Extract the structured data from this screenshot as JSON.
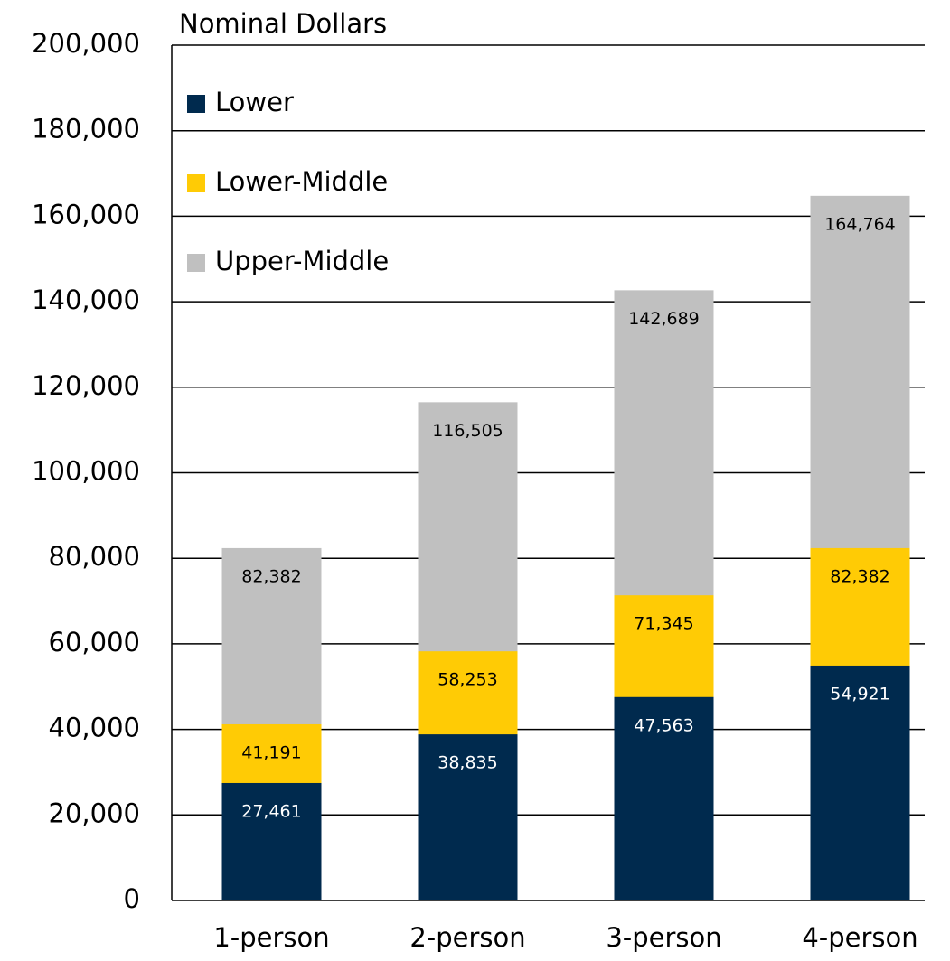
{
  "chart_data": {
    "type": "bar",
    "mode": "overlap",
    "title": "Nominal Dollars",
    "categories": [
      "1-person",
      "2-person",
      "3-person",
      "4-person"
    ],
    "series": [
      {
        "name": "Lower",
        "color": "#002a4e",
        "values": [
          27461,
          38835,
          47563,
          54921
        ],
        "value_labels": [
          "27,461",
          "38,835",
          "47,563",
          "54,921"
        ]
      },
      {
        "name": "Lower-Middle",
        "color": "#ffcb05",
        "values": [
          41191,
          58253,
          71345,
          82382
        ],
        "value_labels": [
          "41,191",
          "58,253",
          "71,345",
          "82,382"
        ]
      },
      {
        "name": "Upper-Middle",
        "color": "#c0c0c0",
        "values": [
          82382,
          116505,
          142689,
          164764
        ],
        "value_labels": [
          "82,382",
          "116,505",
          "142,689",
          "164,764"
        ]
      }
    ],
    "ylim": [
      0,
      200000
    ],
    "yticks": [
      0,
      {
        "value": 20000,
        "label": "20,000"
      },
      {
        "value": 40000,
        "label": "40,000"
      },
      {
        "value": 60000,
        "label": "60,000"
      },
      {
        "value": 80000,
        "label": "80,000"
      },
      {
        "value": 100000,
        "label": "100,000"
      },
      {
        "value": 120000,
        "label": "120,000"
      },
      {
        "value": 140000,
        "label": "140,000"
      },
      {
        "value": 160000,
        "label": "160,000"
      },
      {
        "value": 180000,
        "label": "180,000"
      },
      {
        "value": 200000,
        "label": "200,000"
      }
    ],
    "grid": true,
    "legend": "upper left"
  }
}
